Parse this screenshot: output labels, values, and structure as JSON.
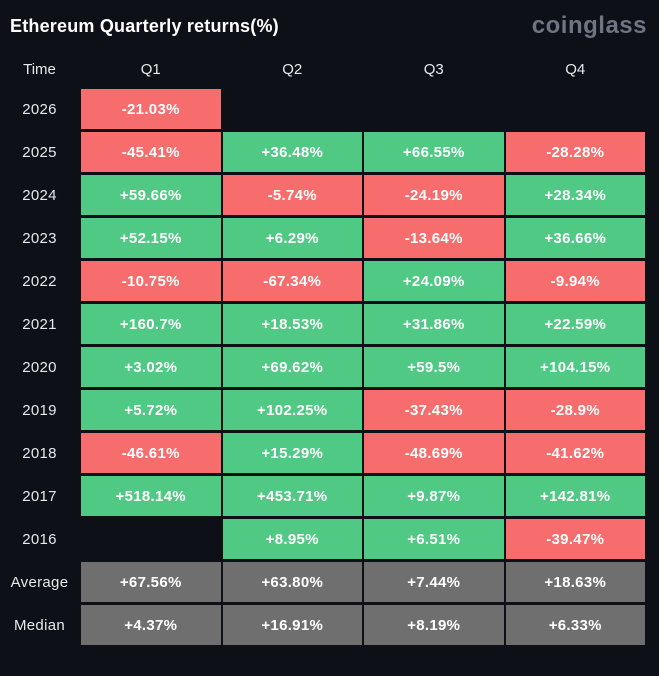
{
  "header": {
    "title": "Ethereum Quarterly returns(%)",
    "logo": "coinglass"
  },
  "colors": {
    "background": "#0d1117",
    "positive": "#50c984",
    "negative": "#f76d6d",
    "neutral": "#6f6f6f",
    "text": "#ffffff",
    "label_text": "#e7e9ea",
    "logo_text": "#6e7582"
  },
  "chart_data": {
    "type": "heatmap",
    "title": "Ethereum Quarterly returns(%)",
    "columns": [
      "Time",
      "Q1",
      "Q2",
      "Q3",
      "Q4"
    ],
    "rows": [
      {
        "label": "2026",
        "summary": false,
        "values": [
          "-21.03%",
          "",
          "",
          ""
        ]
      },
      {
        "label": "2025",
        "summary": false,
        "values": [
          "-45.41%",
          "+36.48%",
          "+66.55%",
          "-28.28%"
        ]
      },
      {
        "label": "2024",
        "summary": false,
        "values": [
          "+59.66%",
          "-5.74%",
          "-24.19%",
          "+28.34%"
        ]
      },
      {
        "label": "2023",
        "summary": false,
        "values": [
          "+52.15%",
          "+6.29%",
          "-13.64%",
          "+36.66%"
        ]
      },
      {
        "label": "2022",
        "summary": false,
        "values": [
          "-10.75%",
          "-67.34%",
          "+24.09%",
          "-9.94%"
        ]
      },
      {
        "label": "2021",
        "summary": false,
        "values": [
          "+160.7%",
          "+18.53%",
          "+31.86%",
          "+22.59%"
        ]
      },
      {
        "label": "2020",
        "summary": false,
        "values": [
          "+3.02%",
          "+69.62%",
          "+59.5%",
          "+104.15%"
        ]
      },
      {
        "label": "2019",
        "summary": false,
        "values": [
          "+5.72%",
          "+102.25%",
          "-37.43%",
          "-28.9%"
        ]
      },
      {
        "label": "2018",
        "summary": false,
        "values": [
          "-46.61%",
          "+15.29%",
          "-48.69%",
          "-41.62%"
        ]
      },
      {
        "label": "2017",
        "summary": false,
        "values": [
          "+518.14%",
          "+453.71%",
          "+9.87%",
          "+142.81%"
        ]
      },
      {
        "label": "2016",
        "summary": false,
        "values": [
          "",
          "+8.95%",
          "+6.51%",
          "-39.47%"
        ]
      },
      {
        "label": "Average",
        "summary": true,
        "values": [
          "+67.56%",
          "+63.80%",
          "+7.44%",
          "+18.63%"
        ]
      },
      {
        "label": "Median",
        "summary": true,
        "values": [
          "+4.37%",
          "+16.91%",
          "+8.19%",
          "+6.33%"
        ]
      }
    ],
    "legend": {
      "positive_color_meaning": "positive quarterly return",
      "negative_color_meaning": "negative quarterly return",
      "neutral_color_meaning": "summary statistic"
    }
  }
}
